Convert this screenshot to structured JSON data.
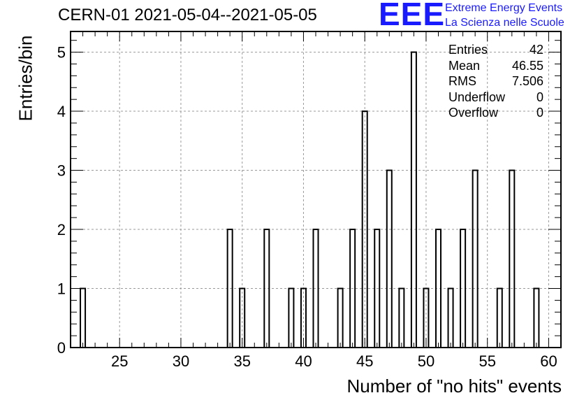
{
  "chart_data": {
    "type": "bar",
    "title": "CERN-01 2021-05-04--2021-05-05",
    "xlabel": "Number of \"no hits\" events",
    "ylabel": "Entries/bin",
    "xlim": [
      21,
      61
    ],
    "ylim": [
      0,
      5.35
    ],
    "bin_width": 0.4,
    "xticks": [
      25,
      30,
      35,
      40,
      45,
      50,
      55,
      60
    ],
    "yticks": [
      0,
      1,
      2,
      3,
      4,
      5
    ],
    "grid": true,
    "bins": [
      {
        "x": 22,
        "value": 1
      },
      {
        "x": 34,
        "value": 2
      },
      {
        "x": 35,
        "value": 1
      },
      {
        "x": 37,
        "value": 2
      },
      {
        "x": 39,
        "value": 1
      },
      {
        "x": 40,
        "value": 1
      },
      {
        "x": 41,
        "value": 2
      },
      {
        "x": 43,
        "value": 1
      },
      {
        "x": 44,
        "value": 2
      },
      {
        "x": 45,
        "value": 4
      },
      {
        "x": 46,
        "value": 2
      },
      {
        "x": 47,
        "value": 3
      },
      {
        "x": 48,
        "value": 1
      },
      {
        "x": 49,
        "value": 5
      },
      {
        "x": 50,
        "value": 1
      },
      {
        "x": 51,
        "value": 2
      },
      {
        "x": 52,
        "value": 1
      },
      {
        "x": 53,
        "value": 2
      },
      {
        "x": 54,
        "value": 3
      },
      {
        "x": 56,
        "value": 1
      },
      {
        "x": 57,
        "value": 3
      },
      {
        "x": 59,
        "value": 1
      }
    ]
  },
  "stats": [
    {
      "label": "Entries",
      "value": "42"
    },
    {
      "label": "Mean",
      "value": "46.55"
    },
    {
      "label": "RMS",
      "value": "7.506"
    },
    {
      "label": "Underflow",
      "value": "0"
    },
    {
      "label": "Overflow",
      "value": "0"
    }
  ],
  "logo": {
    "mark": "EEE",
    "line1": "Extreme Energy Events",
    "line2": "La Scienza nelle Scuole",
    "color": "#1a1aff"
  }
}
